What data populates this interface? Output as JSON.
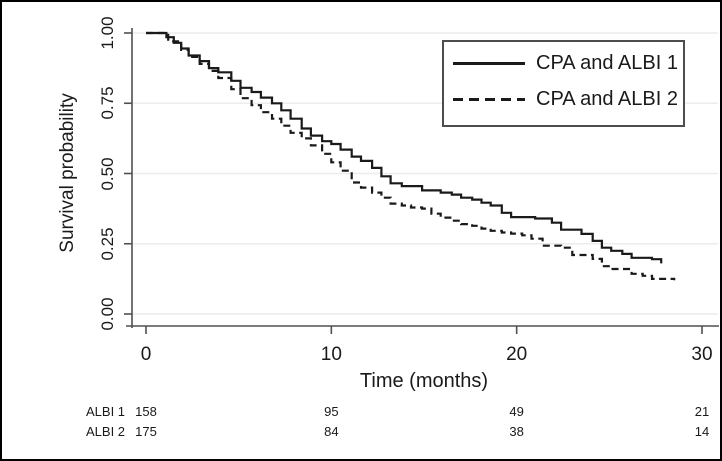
{
  "chart_data": {
    "type": "line",
    "subtype": "kaplan-meier-step",
    "xlabel": "Time (months)",
    "ylabel": "Survival probability",
    "xlim": [
      0,
      30
    ],
    "ylim": [
      0.0,
      1.0
    ],
    "x_ticks": [
      0,
      10,
      20,
      30
    ],
    "y_ticks": [
      {
        "value": 1.0,
        "label": "1.00"
      },
      {
        "value": 0.75,
        "label": "0.75"
      },
      {
        "value": 0.5,
        "label": "0.50"
      },
      {
        "value": 0.25,
        "label": "0.25"
      },
      {
        "value": 0.0,
        "label": "0.00"
      }
    ],
    "grid": true,
    "legend_position": "top-right",
    "series": [
      {
        "name": "CPA and ALBI 1",
        "style": "solid",
        "color": "#1a1a1a",
        "points": [
          [
            0,
            1.0
          ],
          [
            0.9,
            1.0
          ],
          [
            1.1,
            0.985
          ],
          [
            1.5,
            0.965
          ],
          [
            1.9,
            0.945
          ],
          [
            2.3,
            0.92
          ],
          [
            2.9,
            0.9
          ],
          [
            3.4,
            0.875
          ],
          [
            3.9,
            0.86
          ],
          [
            4.6,
            0.83
          ],
          [
            5.1,
            0.805
          ],
          [
            5.7,
            0.79
          ],
          [
            6.2,
            0.77
          ],
          [
            6.8,
            0.75
          ],
          [
            7.3,
            0.725
          ],
          [
            7.8,
            0.695
          ],
          [
            8.4,
            0.66
          ],
          [
            8.9,
            0.635
          ],
          [
            9.5,
            0.615
          ],
          [
            10.0,
            0.605
          ],
          [
            10.5,
            0.585
          ],
          [
            11.1,
            0.56
          ],
          [
            11.6,
            0.545
          ],
          [
            12.2,
            0.52
          ],
          [
            12.7,
            0.49
          ],
          [
            13.2,
            0.465
          ],
          [
            13.8,
            0.455
          ],
          [
            14.9,
            0.44
          ],
          [
            15.9,
            0.432
          ],
          [
            16.5,
            0.425
          ],
          [
            17.0,
            0.414
          ],
          [
            17.6,
            0.407
          ],
          [
            18.1,
            0.396
          ],
          [
            18.6,
            0.386
          ],
          [
            19.2,
            0.36
          ],
          [
            19.7,
            0.345
          ],
          [
            21.0,
            0.34
          ],
          [
            21.9,
            0.325
          ],
          [
            22.4,
            0.3
          ],
          [
            23.5,
            0.285
          ],
          [
            24.1,
            0.26
          ],
          [
            24.6,
            0.236
          ],
          [
            25.1,
            0.225
          ],
          [
            25.7,
            0.214
          ],
          [
            26.2,
            0.2
          ],
          [
            27.3,
            0.195
          ],
          [
            27.8,
            0.18
          ]
        ]
      },
      {
        "name": "CPA and ALBI 2",
        "style": "dashed",
        "color": "#1a1a1a",
        "points": [
          [
            0,
            1.0
          ],
          [
            0.9,
            1.0
          ],
          [
            1.2,
            0.97
          ],
          [
            1.9,
            0.94
          ],
          [
            2.3,
            0.915
          ],
          [
            2.9,
            0.89
          ],
          [
            3.4,
            0.865
          ],
          [
            3.9,
            0.84
          ],
          [
            4.6,
            0.8
          ],
          [
            5.1,
            0.768
          ],
          [
            5.7,
            0.743
          ],
          [
            6.2,
            0.718
          ],
          [
            6.8,
            0.695
          ],
          [
            7.3,
            0.67
          ],
          [
            7.8,
            0.645
          ],
          [
            8.4,
            0.625
          ],
          [
            8.9,
            0.6
          ],
          [
            9.5,
            0.57
          ],
          [
            10.0,
            0.54
          ],
          [
            10.5,
            0.51
          ],
          [
            11.1,
            0.468
          ],
          [
            11.6,
            0.45
          ],
          [
            12.2,
            0.432
          ],
          [
            12.7,
            0.414
          ],
          [
            13.2,
            0.393
          ],
          [
            13.8,
            0.386
          ],
          [
            14.3,
            0.379
          ],
          [
            14.9,
            0.375
          ],
          [
            15.4,
            0.357
          ],
          [
            15.9,
            0.343
          ],
          [
            16.5,
            0.332
          ],
          [
            17.0,
            0.32
          ],
          [
            17.6,
            0.314
          ],
          [
            18.1,
            0.304
          ],
          [
            18.6,
            0.296
          ],
          [
            19.2,
            0.29
          ],
          [
            19.7,
            0.286
          ],
          [
            20.3,
            0.28
          ],
          [
            20.8,
            0.268
          ],
          [
            21.4,
            0.243
          ],
          [
            22.4,
            0.236
          ],
          [
            23.0,
            0.21
          ],
          [
            24.1,
            0.196
          ],
          [
            24.6,
            0.17
          ],
          [
            25.1,
            0.16
          ],
          [
            26.2,
            0.143
          ],
          [
            26.8,
            0.136
          ],
          [
            27.3,
            0.125
          ],
          [
            28.5,
            0.12
          ]
        ]
      }
    ]
  },
  "risk_table": {
    "times": [
      0,
      10,
      20,
      30
    ],
    "rows": [
      {
        "label": "ALBI 1",
        "counts": [
          "158",
          "95",
          "49",
          "21"
        ]
      },
      {
        "label": "ALBI 2",
        "counts": [
          "175",
          "84",
          "38",
          "14"
        ]
      }
    ]
  },
  "colors": {
    "curve": "#1a1a1a",
    "axis": "#505050",
    "grid": "#ececec",
    "legend_border": "#4d4d4d",
    "background": "#ffffff",
    "frame_border": "#000000"
  }
}
